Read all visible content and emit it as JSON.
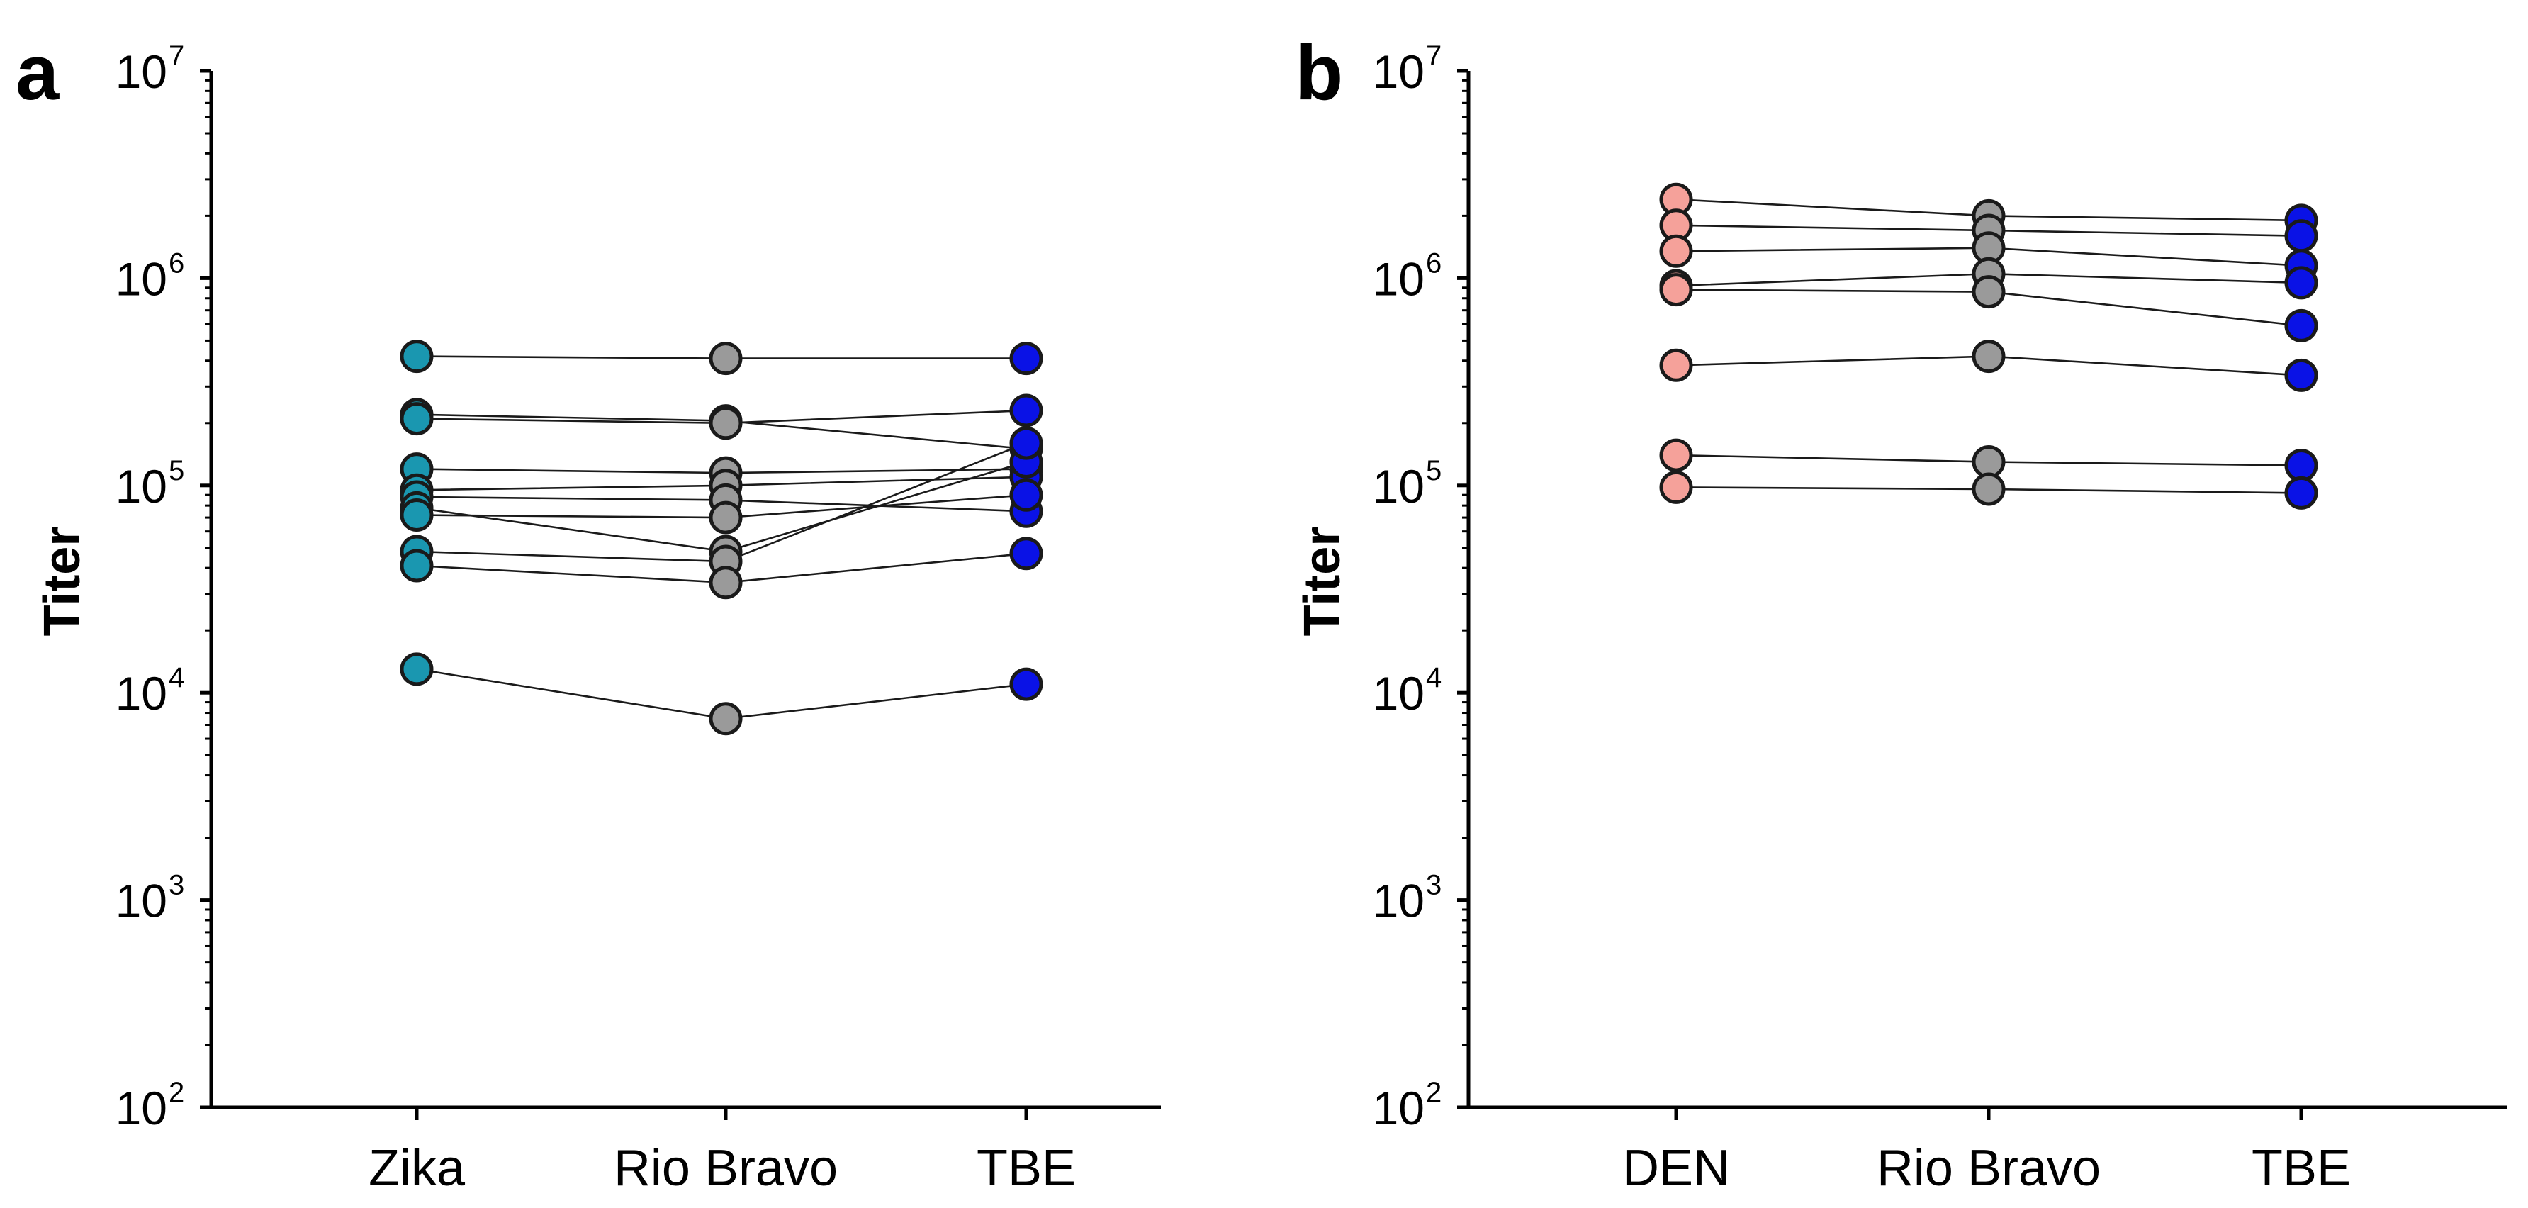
{
  "colors": {
    "zika": "#1a97b0",
    "rio_bravo": "#9a9a9a",
    "tbe": "#0a12e6",
    "den": "#f5a19a",
    "stroke": "#1a1a1a"
  },
  "chart_data": [
    {
      "type": "scatter",
      "panel": "a",
      "ylabel": "Titer",
      "xlabel": "",
      "yscale": "log",
      "ylim": [
        100,
        10000000
      ],
      "yticks": [
        {
          "base": "10",
          "exp": "2"
        },
        {
          "base": "10",
          "exp": "3"
        },
        {
          "base": "10",
          "exp": "4"
        },
        {
          "base": "10",
          "exp": "5"
        },
        {
          "base": "10",
          "exp": "6"
        },
        {
          "base": "10",
          "exp": "7"
        }
      ],
      "categories": [
        "Zika",
        "Rio Bravo",
        "TBE"
      ],
      "category_colors": [
        "zika",
        "rio_bravo",
        "tbe"
      ],
      "subjects": [
        [
          420000,
          410000,
          410000
        ],
        [
          220000,
          205000,
          150000
        ],
        [
          210000,
          200000,
          230000
        ],
        [
          120000,
          115000,
          120000
        ],
        [
          95000,
          100000,
          110000
        ],
        [
          88000,
          85000,
          75000
        ],
        [
          78000,
          48000,
          130000
        ],
        [
          72000,
          70000,
          90000
        ],
        [
          48000,
          43000,
          160000
        ],
        [
          41000,
          34000,
          47000
        ],
        [
          13000,
          7500,
          11000
        ]
      ]
    },
    {
      "type": "scatter",
      "panel": "b",
      "ylabel": "Titer",
      "xlabel": "",
      "yscale": "log",
      "ylim": [
        100,
        10000000
      ],
      "yticks": [
        {
          "base": "10",
          "exp": "2"
        },
        {
          "base": "10",
          "exp": "3"
        },
        {
          "base": "10",
          "exp": "4"
        },
        {
          "base": "10",
          "exp": "5"
        },
        {
          "base": "10",
          "exp": "6"
        },
        {
          "base": "10",
          "exp": "7"
        }
      ],
      "categories": [
        "DEN",
        "Rio Bravo",
        "TBE"
      ],
      "category_colors": [
        "den",
        "rio_bravo",
        "tbe"
      ],
      "subjects": [
        [
          2400000,
          2000000,
          1900000
        ],
        [
          1800000,
          1700000,
          1600000
        ],
        [
          1350000,
          1400000,
          1150000
        ],
        [
          920000,
          1050000,
          950000
        ],
        [
          880000,
          860000,
          590000
        ],
        [
          380000,
          420000,
          340000
        ],
        [
          140000,
          130000,
          125000
        ],
        [
          98000,
          96000,
          92000
        ]
      ]
    }
  ]
}
